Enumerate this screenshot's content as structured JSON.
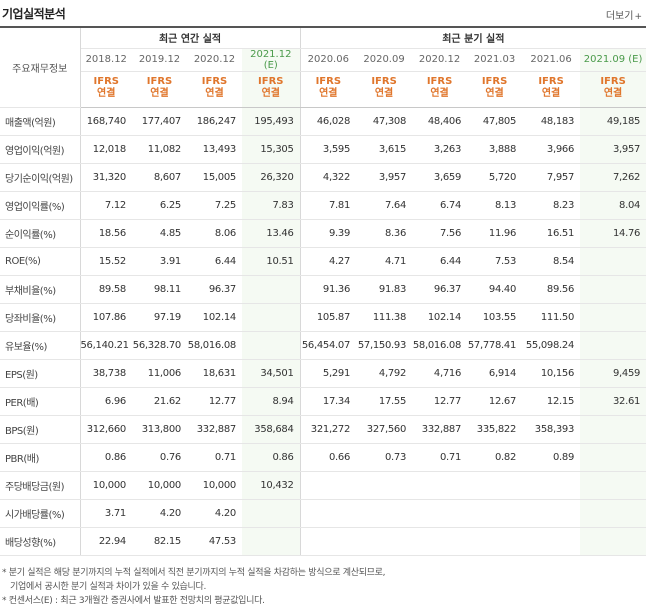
{
  "title": "기업실적분석",
  "more_label": "더보기",
  "head": {
    "label": "주요재무정보",
    "annual_group": "최근 연간 실적",
    "quarter_group": "최근 분기 실적",
    "annual_periods": [
      "2018.12",
      "2019.12",
      "2020.12",
      "2021.12"
    ],
    "annual_est_tag": "(E)",
    "quarter_periods": [
      "2020.06",
      "2020.09",
      "2020.12",
      "2021.03",
      "2021.06",
      "2021.09"
    ],
    "quarter_est_tag": "(E)",
    "ifrs_line1": "IFRS",
    "ifrs_line2": "연결"
  },
  "rows": [
    {
      "label": "매출액(억원)",
      "annual": [
        "168,740",
        "177,407",
        "186,247",
        "195,493"
      ],
      "quarter": [
        "46,028",
        "47,308",
        "48,406",
        "47,805",
        "48,183",
        "49,185"
      ]
    },
    {
      "label": "영업이익(억원)",
      "annual": [
        "12,018",
        "11,082",
        "13,493",
        "15,305"
      ],
      "quarter": [
        "3,595",
        "3,615",
        "3,263",
        "3,888",
        "3,966",
        "3,957"
      ]
    },
    {
      "label": "당기순이익(억원)",
      "annual": [
        "31,320",
        "8,607",
        "15,005",
        "26,320"
      ],
      "quarter": [
        "4,322",
        "3,957",
        "3,659",
        "5,720",
        "7,957",
        "7,262"
      ]
    },
    {
      "label": "영업이익률(%)",
      "annual": [
        "7.12",
        "6.25",
        "7.25",
        "7.83"
      ],
      "quarter": [
        "7.81",
        "7.64",
        "6.74",
        "8.13",
        "8.23",
        "8.04"
      ]
    },
    {
      "label": "순이익률(%)",
      "annual": [
        "18.56",
        "4.85",
        "8.06",
        "13.46"
      ],
      "quarter": [
        "9.39",
        "8.36",
        "7.56",
        "11.96",
        "16.51",
        "14.76"
      ]
    },
    {
      "label": "ROE(%)",
      "annual": [
        "15.52",
        "3.91",
        "6.44",
        "10.51"
      ],
      "quarter": [
        "4.27",
        "4.71",
        "6.44",
        "7.53",
        "8.54",
        ""
      ]
    },
    {
      "label": "부채비율(%)",
      "annual": [
        "89.58",
        "98.11",
        "96.37",
        ""
      ],
      "quarter": [
        "91.36",
        "91.83",
        "96.37",
        "94.40",
        "89.56",
        ""
      ]
    },
    {
      "label": "당좌비율(%)",
      "annual": [
        "107.86",
        "97.19",
        "102.14",
        ""
      ],
      "quarter": [
        "105.87",
        "111.38",
        "102.14",
        "103.55",
        "111.50",
        ""
      ]
    },
    {
      "label": "유보율(%)",
      "annual": [
        "56,140.21",
        "56,328.70",
        "58,016.08",
        ""
      ],
      "quarter": [
        "56,454.07",
        "57,150.93",
        "58,016.08",
        "57,778.41",
        "55,098.24",
        ""
      ]
    },
    {
      "label": "EPS(원)",
      "annual": [
        "38,738",
        "11,006",
        "18,631",
        "34,501"
      ],
      "quarter": [
        "5,291",
        "4,792",
        "4,716",
        "6,914",
        "10,156",
        "9,459"
      ]
    },
    {
      "label": "PER(배)",
      "annual": [
        "6.96",
        "21.62",
        "12.77",
        "8.94"
      ],
      "quarter": [
        "17.34",
        "17.55",
        "12.77",
        "12.67",
        "12.15",
        "32.61"
      ]
    },
    {
      "label": "BPS(원)",
      "annual": [
        "312,660",
        "313,800",
        "332,887",
        "358,684"
      ],
      "quarter": [
        "321,272",
        "327,560",
        "332,887",
        "335,822",
        "358,393",
        ""
      ]
    },
    {
      "label": "PBR(배)",
      "annual": [
        "0.86",
        "0.76",
        "0.71",
        "0.86"
      ],
      "quarter": [
        "0.66",
        "0.73",
        "0.71",
        "0.82",
        "0.89",
        ""
      ]
    },
    {
      "label": "주당배당금(원)",
      "annual": [
        "10,000",
        "10,000",
        "10,000",
        "10,432"
      ],
      "quarter": [
        "",
        "",
        "",
        "",
        "",
        ""
      ]
    },
    {
      "label": "시가배당률(%)",
      "annual": [
        "3.71",
        "4.20",
        "4.20",
        ""
      ],
      "quarter": [
        "",
        "",
        "",
        "",
        "",
        ""
      ]
    },
    {
      "label": "배당성향(%)",
      "annual": [
        "22.94",
        "82.15",
        "47.53",
        ""
      ],
      "quarter": [
        "",
        "",
        "",
        "",
        "",
        ""
      ]
    }
  ],
  "notes": {
    "line1": "* 분기 실적은 해당 분기까지의 누적 실적에서 직전 분기까지의 누적 실적을 차감하는 방식으로 계산되므로,",
    "line2": "기업에서 공시한 분기 실적과 차이가 있을 수 있습니다.",
    "line3": "* 컨센서스(E) : 최근 3개월간 증권사에서 발표한 전망치의 평균값입니다."
  },
  "colors": {
    "ifrs": "#e0762c",
    "estimate_text": "#4a9a4a",
    "estimate_bg": "#f5faf3"
  }
}
